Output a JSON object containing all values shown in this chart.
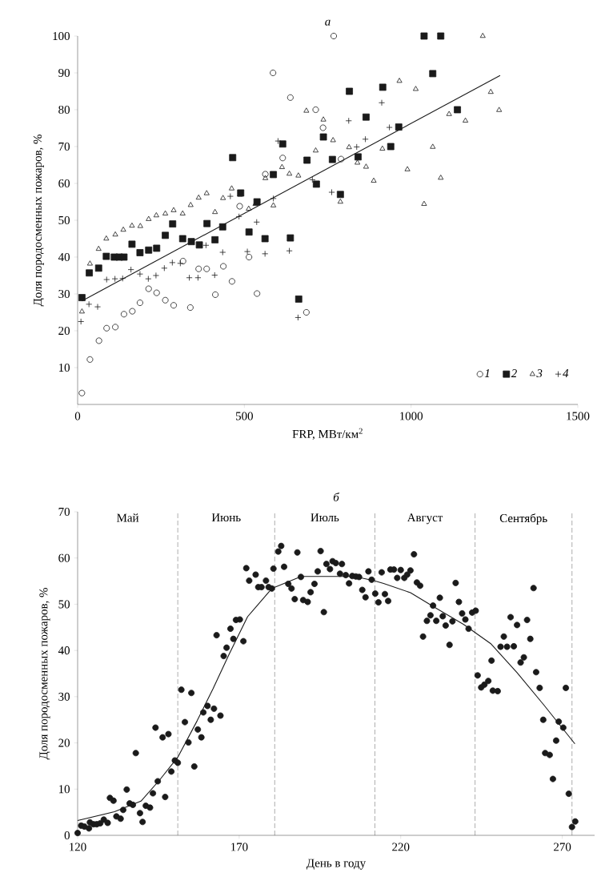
{
  "chart_data": [
    {
      "type": "scatter",
      "title": "а",
      "xlabel": "FRP, МВт/км$^{2}$",
      "ylabel": "Доля породосменных пожаров, %",
      "xlim": [
        0,
        1500
      ],
      "ylim": [
        0,
        100
      ],
      "xticks": [
        0,
        500,
        1000,
        1500
      ],
      "yticks": [
        10,
        20,
        30,
        40,
        50,
        60,
        70,
        80,
        90,
        100
      ],
      "legend": "bottom right",
      "series": [
        {
          "name": "1",
          "color": "#1a1a1a",
          "marker": "circle",
          "x": [
            12.8,
            37,
            64,
            87,
            113,
            139,
            164,
            187,
            213,
            237,
            263,
            288,
            316,
            338,
            363,
            387,
            413,
            437,
            463,
            486,
            514,
            538,
            563,
            586,
            615,
            638,
            686,
            714,
            768,
            736,
            790
          ],
          "values": [
            3.1,
            12.2,
            17.3,
            20.7,
            21,
            24.5,
            25.3,
            27.6,
            31.4,
            30.3,
            28.3,
            26.9,
            38.9,
            26.3,
            36.8,
            36.8,
            29.8,
            37.5,
            33.4,
            53.8,
            40,
            30.1,
            62.5,
            90,
            66.9,
            83.3,
            25,
            80,
            100,
            75.1,
            66.6
          ]
        },
        {
          "name": "2",
          "color": "#1a1a1a",
          "marker": "square",
          "x": [
            13,
            35,
            63,
            86,
            110,
            125,
            139,
            163,
            187,
            213,
            237,
            263,
            285,
            315,
            341,
            365,
            388,
            412,
            435,
            465,
            489,
            514,
            538,
            562,
            587,
            615,
            638,
            663,
            688,
            716,
            1039,
            1089,
            1065,
            815,
            915,
            865,
            1139,
            737,
            963,
            939,
            764,
            841,
            788
          ],
          "values": [
            29,
            35.7,
            37,
            40.2,
            40,
            40,
            40,
            43.5,
            41.2,
            41.9,
            42.4,
            45.9,
            49,
            45,
            44.2,
            43.3,
            49.1,
            44.7,
            48.2,
            67,
            57.4,
            46.8,
            55,
            45,
            62.4,
            70.7,
            45.2,
            28.6,
            66.3,
            59.8,
            100,
            100,
            89.8,
            85,
            86.1,
            78,
            80,
            72.6,
            75.3,
            70,
            66.5,
            67.2,
            57
          ]
        },
        {
          "name": "3",
          "color": "#1a1a1a",
          "marker": "triangle",
          "x": [
            13,
            37,
            63,
            86,
            113,
            137,
            163,
            188,
            213,
            236,
            263,
            288,
            315,
            339,
            363,
            387,
            412,
            436,
            462,
            487,
            513,
            533,
            563,
            587,
            613,
            635,
            662,
            686,
            714,
            1215,
            965,
            1014,
            1239,
            1264,
            1114,
            1163,
            737,
            766,
            814,
            914,
            1065,
            839,
            865,
            888,
            989,
            1089,
            788,
            1039
          ],
          "values": [
            25.2,
            38.2,
            42.2,
            45,
            46.1,
            47.4,
            48.5,
            48.4,
            50.3,
            51.3,
            51.8,
            52.7,
            51.8,
            54.1,
            56.1,
            57.3,
            52.2,
            56,
            58.6,
            56.9,
            53.1,
            54.4,
            61.4,
            54,
            64.4,
            62.6,
            62.1,
            79.7,
            68.9,
            100,
            87.8,
            85.6,
            84.8,
            79.9,
            78.8,
            77,
            77.3,
            71.7,
            69.8,
            69.4,
            69.9,
            65.6,
            64.5,
            60.7,
            63.8,
            61.5,
            55,
            54.4
          ]
        },
        {
          "name": "4",
          "color": "#1a1a1a",
          "marker": "cross",
          "x": [
            10,
            34,
            60,
            87,
            112,
            135,
            160,
            187,
            212,
            235,
            260,
            284,
            308,
            335,
            361,
            385,
            411,
            435,
            458,
            484,
            509,
            537,
            562,
            587,
            601,
            635,
            661,
            704,
            912,
            813,
            935,
            863,
            837,
            762
          ],
          "values": [
            22.5,
            27.2,
            26.5,
            33.9,
            34.1,
            34.2,
            36.6,
            35.4,
            34.1,
            35,
            37,
            38.5,
            38.3,
            34.4,
            34.4,
            43.2,
            35.1,
            41.3,
            56.5,
            51,
            41.5,
            49.5,
            40.9,
            55.9,
            71.5,
            41.7,
            23.6,
            61,
            81.9,
            77,
            75.2,
            72,
            69.9,
            57.6
          ]
        },
        {
          "type": "line",
          "color": "#1a1a1a",
          "x": [
            13,
            1267
          ],
          "values": [
            28.1,
            89.3
          ]
        }
      ]
    },
    {
      "type": "scatter",
      "title": "б",
      "xlabel": "День в году",
      "ylabel": "Доля породосменных пожаров, %",
      "xlim": [
        120,
        280
      ],
      "ylim": [
        0,
        70
      ],
      "xticks": [
        120,
        170,
        220,
        270
      ],
      "yticks": [
        0,
        10,
        20,
        30,
        40,
        50,
        60,
        70
      ],
      "ref_lines": [
        {
          "axis": "x",
          "value": 151,
          "line_style": "dashed"
        },
        {
          "axis": "x",
          "value": 181,
          "line_style": "dashed"
        },
        {
          "axis": "x",
          "value": 212,
          "line_style": "dashed"
        },
        {
          "axis": "x",
          "value": 243,
          "line_style": "dashed"
        },
        {
          "axis": "x",
          "value": 273,
          "line_style": "dashed"
        }
      ],
      "annotations": [
        "Май",
        "Июнь",
        "Июль",
        "Август",
        "Сентябрь"
      ],
      "series": [
        {
          "color": "#1a1a1a",
          "marker": "circle",
          "x": [
            120,
            121.1,
            122.1,
            123.5,
            123.8,
            124.9,
            125.9,
            127,
            128.1,
            129.3,
            130,
            131.1,
            132,
            133.3,
            134.1,
            135.2,
            136.1,
            137.1,
            138,
            139.3,
            140.1,
            141.1,
            142.4,
            143.3,
            144.1,
            144.8,
            146.3,
            147.1,
            148.1,
            149,
            150.1,
            151,
            152.1,
            153.2,
            154.3,
            155.2,
            156.1,
            157.2,
            158.3,
            158.9,
            160.2,
            161.2,
            162.2,
            163,
            164.2,
            165.2,
            166.1,
            167.3,
            168.2,
            169,
            170.2,
            171.3,
            172.2,
            173.1,
            175.1,
            175.9,
            176.9,
            178.3,
            179.1,
            180.1,
            180.6,
            182.1,
            183,
            183.9,
            185.2,
            186.2,
            187.2,
            188,
            189.1,
            189.8,
            191.2,
            192.1,
            193.3,
            194.3,
            195.2,
            196.2,
            197,
            198.1,
            198.9,
            199.9,
            201.2,
            201.8,
            203,
            204,
            205,
            206.1,
            207.1,
            208.1,
            209.1,
            210,
            211,
            212.1,
            213.1,
            214.1,
            215.1,
            216.1,
            216.8,
            217.9,
            218.9,
            220,
            221.1,
            222,
            223,
            224.1,
            225,
            226,
            226.9,
            228.1,
            229.2,
            230,
            231,
            232.1,
            233,
            233.9,
            235.1,
            236,
            237,
            238,
            239,
            240,
            241,
            242.1,
            243.2,
            243.8,
            244.9,
            245.9,
            247.1,
            248.1,
            248.5,
            250,
            250.9,
            251.9,
            252.9,
            254,
            255,
            256,
            257.1,
            258.1,
            259.1,
            260.1,
            261.1,
            261.9,
            263,
            264.1,
            264.7,
            266.1,
            267.1,
            268.1,
            268.9,
            270.3,
            271.1,
            272,
            273,
            274
          ],
          "values": [
            0.5,
            2.1,
            1.9,
            1.5,
            2.8,
            2.4,
            2.4,
            2.6,
            3.4,
            2.7,
            8.1,
            7.5,
            4.1,
            3.6,
            5.5,
            9.9,
            6.9,
            6.6,
            17.8,
            4.8,
            2.9,
            6.4,
            6,
            9.1,
            23.3,
            11.7,
            21.2,
            8.3,
            21.9,
            13.8,
            16.2,
            15.7,
            31.5,
            24.5,
            20.1,
            30.8,
            14.9,
            22.9,
            21.2,
            26.6,
            28,
            25,
            27.4,
            43.3,
            25.9,
            38.8,
            40.6,
            44.7,
            42.5,
            46.6,
            46.7,
            42,
            57.8,
            55.1,
            56.4,
            53.7,
            53.7,
            55.1,
            53.7,
            53.4,
            57.7,
            61.4,
            62.6,
            58.1,
            54.4,
            53.4,
            51.1,
            61.2,
            55.9,
            50.9,
            50.5,
            52.6,
            54.4,
            57.1,
            61.5,
            48.3,
            58.7,
            57.6,
            59.3,
            58.9,
            56.6,
            58.7,
            56.3,
            54.5,
            56.1,
            56,
            55.9,
            53.1,
            51.5,
            57.1,
            55.3,
            52.3,
            50.4,
            56.9,
            52.2,
            50.7,
            57.5,
            57.5,
            55.7,
            57.4,
            55.7,
            56.4,
            57.3,
            60.8,
            54.7,
            54,
            43,
            46.4,
            47.6,
            49.7,
            46.4,
            51.4,
            47.4,
            45.4,
            41.2,
            46.3,
            54.6,
            50.5,
            48,
            46.7,
            44.7,
            48.2,
            48.6,
            34.6,
            32,
            32.6,
            33.4,
            37.8,
            31.3,
            31.2,
            40.8,
            43,
            40.8,
            47.2,
            40.9,
            45.5,
            37.4,
            38.5,
            46.6,
            42.5,
            53.5,
            35.3,
            31.9,
            25,
            17.8,
            17.4,
            12.2,
            20.5,
            24.6,
            23.3,
            31.9,
            9,
            1.8,
            3
          ]
        },
        {
          "type": "line",
          "color": "#1a1a1a",
          "x": [
            120,
            131.4,
            139.6,
            145.4,
            151,
            157,
            161.9,
            166.9,
            172.6,
            180.1,
            189.2,
            200.7,
            205.7,
            211.7,
            214.7,
            223,
            231.3,
            239.5,
            247.8,
            256,
            264.3,
            273.9
          ],
          "values": [
            3.2,
            5.1,
            7.4,
            12,
            16.9,
            24.8,
            31.7,
            39.2,
            47.3,
            53.4,
            56,
            56,
            56,
            55.1,
            54.5,
            52.5,
            49,
            45.6,
            41.5,
            35.2,
            28.2,
            19.8
          ]
        }
      ]
    }
  ]
}
